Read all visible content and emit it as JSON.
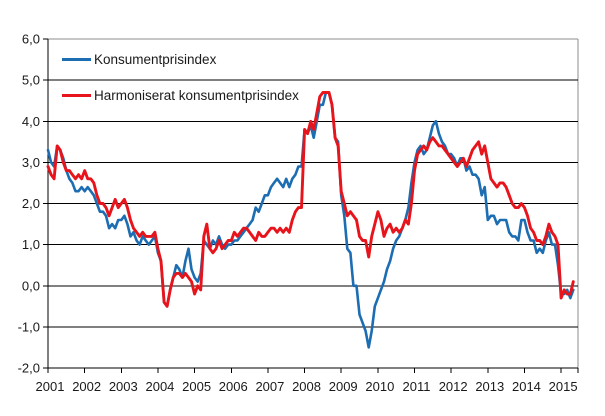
{
  "figure": {
    "background": "#ffffff",
    "plot_border_color": "#8c8c8c",
    "gridline_color": "#000000",
    "axis_color": "#000000",
    "text_color": "#1a1a1a"
  },
  "legend": {
    "entries": [
      {
        "label": "Konsumentprisindex",
        "color": "#1c6db2"
      },
      {
        "label": "Harmoniserat konsumentprisindex",
        "color": "#e8141b"
      }
    ]
  },
  "y_axis": {
    "tick_labels": [
      "6,0",
      "5,0",
      "4,0",
      "3,0",
      "2,0",
      "1,0",
      "0,0",
      "-1,0",
      "-2,0"
    ],
    "tick_values": [
      6,
      5,
      4,
      3,
      2,
      1,
      0,
      -1,
      -2
    ],
    "min": -2,
    "max": 6
  },
  "x_axis": {
    "year_labels": [
      "2001",
      "2002",
      "2003",
      "2004",
      "2005",
      "2006",
      "2007",
      "2008",
      "2009",
      "2010",
      "2011",
      "2012",
      "2013",
      "2014",
      "2015"
    ]
  },
  "chart_data": {
    "type": "line",
    "title": "",
    "xlabel": "",
    "ylabel": "",
    "x_start": "2001-01",
    "x_end": "2015-05",
    "frequency": "monthly",
    "ylim": [
      -2,
      6
    ],
    "grid": true,
    "legend_position": "top-left-inside",
    "series": [
      {
        "name": "Konsumentprisindex",
        "color": "#1c6db2",
        "values": [
          3.3,
          3.0,
          2.9,
          3.4,
          3.3,
          3.1,
          2.8,
          2.6,
          2.5,
          2.3,
          2.3,
          2.4,
          2.3,
          2.4,
          2.3,
          2.2,
          2.0,
          1.8,
          1.8,
          1.7,
          1.4,
          1.5,
          1.4,
          1.6,
          1.6,
          1.7,
          1.5,
          1.2,
          1.3,
          1.1,
          1.0,
          1.2,
          1.1,
          1.0,
          1.1,
          1.2,
          0.8,
          0.6,
          -0.4,
          -0.5,
          -0.1,
          0.2,
          0.5,
          0.4,
          0.2,
          0.6,
          0.9,
          0.4,
          0.2,
          0.1,
          0.3,
          1.1,
          1.0,
          0.9,
          1.1,
          1.0,
          1.2,
          1.0,
          0.9,
          1.0,
          1.0,
          1.1,
          1.1,
          1.2,
          1.3,
          1.4,
          1.5,
          1.6,
          1.9,
          1.8,
          2.0,
          2.2,
          2.2,
          2.4,
          2.5,
          2.6,
          2.5,
          2.4,
          2.6,
          2.4,
          2.6,
          2.7,
          2.9,
          2.9,
          3.8,
          3.7,
          3.9,
          3.6,
          4.0,
          4.4,
          4.4,
          4.7,
          4.7,
          4.4,
          3.6,
          3.5,
          2.2,
          1.7,
          0.9,
          0.8,
          0.0,
          0.0,
          -0.7,
          -0.9,
          -1.1,
          -1.5,
          -1.1,
          -0.5,
          -0.3,
          -0.1,
          0.1,
          0.4,
          0.6,
          0.9,
          1.1,
          1.2,
          1.4,
          1.6,
          1.9,
          2.5,
          3.0,
          3.3,
          3.4,
          3.2,
          3.3,
          3.6,
          3.9,
          4.0,
          3.7,
          3.5,
          3.4,
          3.2,
          3.2,
          3.1,
          2.9,
          3.1,
          3.1,
          2.8,
          2.9,
          2.7,
          2.7,
          2.6,
          2.2,
          2.4,
          1.6,
          1.7,
          1.7,
          1.5,
          1.6,
          1.6,
          1.6,
          1.3,
          1.2,
          1.2,
          1.1,
          1.6,
          1.6,
          1.3,
          1.1,
          1.1,
          0.8,
          0.9,
          0.8,
          1.1,
          1.3,
          1.0,
          1.0,
          0.5,
          -0.2,
          -0.2,
          -0.1,
          -0.3,
          -0.1
        ]
      },
      {
        "name": "Harmoniserat konsumentprisindex",
        "color": "#e8141b",
        "values": [
          2.9,
          2.7,
          2.6,
          3.4,
          3.3,
          3.0,
          2.8,
          2.8,
          2.7,
          2.6,
          2.7,
          2.6,
          2.8,
          2.6,
          2.6,
          2.5,
          2.2,
          2.0,
          2.0,
          1.9,
          1.7,
          1.9,
          2.1,
          1.9,
          2.0,
          2.1,
          1.9,
          1.6,
          1.4,
          1.3,
          1.2,
          1.3,
          1.2,
          1.2,
          1.2,
          1.3,
          0.9,
          0.6,
          -0.4,
          -0.5,
          -0.1,
          0.2,
          0.3,
          0.3,
          0.2,
          0.3,
          0.2,
          0.1,
          -0.2,
          0.0,
          -0.1,
          1.2,
          1.5,
          0.9,
          0.8,
          0.9,
          1.1,
          0.9,
          1.0,
          1.1,
          1.1,
          1.3,
          1.2,
          1.3,
          1.4,
          1.4,
          1.3,
          1.2,
          1.1,
          1.3,
          1.2,
          1.2,
          1.3,
          1.4,
          1.4,
          1.3,
          1.4,
          1.3,
          1.4,
          1.3,
          1.6,
          1.8,
          1.9,
          1.9,
          3.8,
          3.7,
          4.0,
          3.8,
          4.2,
          4.6,
          4.7,
          4.7,
          4.7,
          4.4,
          3.6,
          3.4,
          2.3,
          2.0,
          1.7,
          1.8,
          1.7,
          1.6,
          1.2,
          1.1,
          1.1,
          0.7,
          1.2,
          1.5,
          1.8,
          1.6,
          1.2,
          1.4,
          1.5,
          1.3,
          1.4,
          1.3,
          1.4,
          1.6,
          1.5,
          2.0,
          2.8,
          3.2,
          3.3,
          3.4,
          3.3,
          3.5,
          3.6,
          3.5,
          3.4,
          3.4,
          3.3,
          3.2,
          3.1,
          3.0,
          2.9,
          3.0,
          3.1,
          2.9,
          3.1,
          3.3,
          3.4,
          3.5,
          3.2,
          3.4,
          3.0,
          2.6,
          2.5,
          2.4,
          2.5,
          2.5,
          2.4,
          2.2,
          2.0,
          1.9,
          1.9,
          2.0,
          1.9,
          1.7,
          1.4,
          1.3,
          1.1,
          1.1,
          1.0,
          1.2,
          1.5,
          1.3,
          1.2,
          1.0,
          -0.3,
          -0.1,
          -0.2,
          -0.2,
          0.1
        ]
      }
    ]
  }
}
